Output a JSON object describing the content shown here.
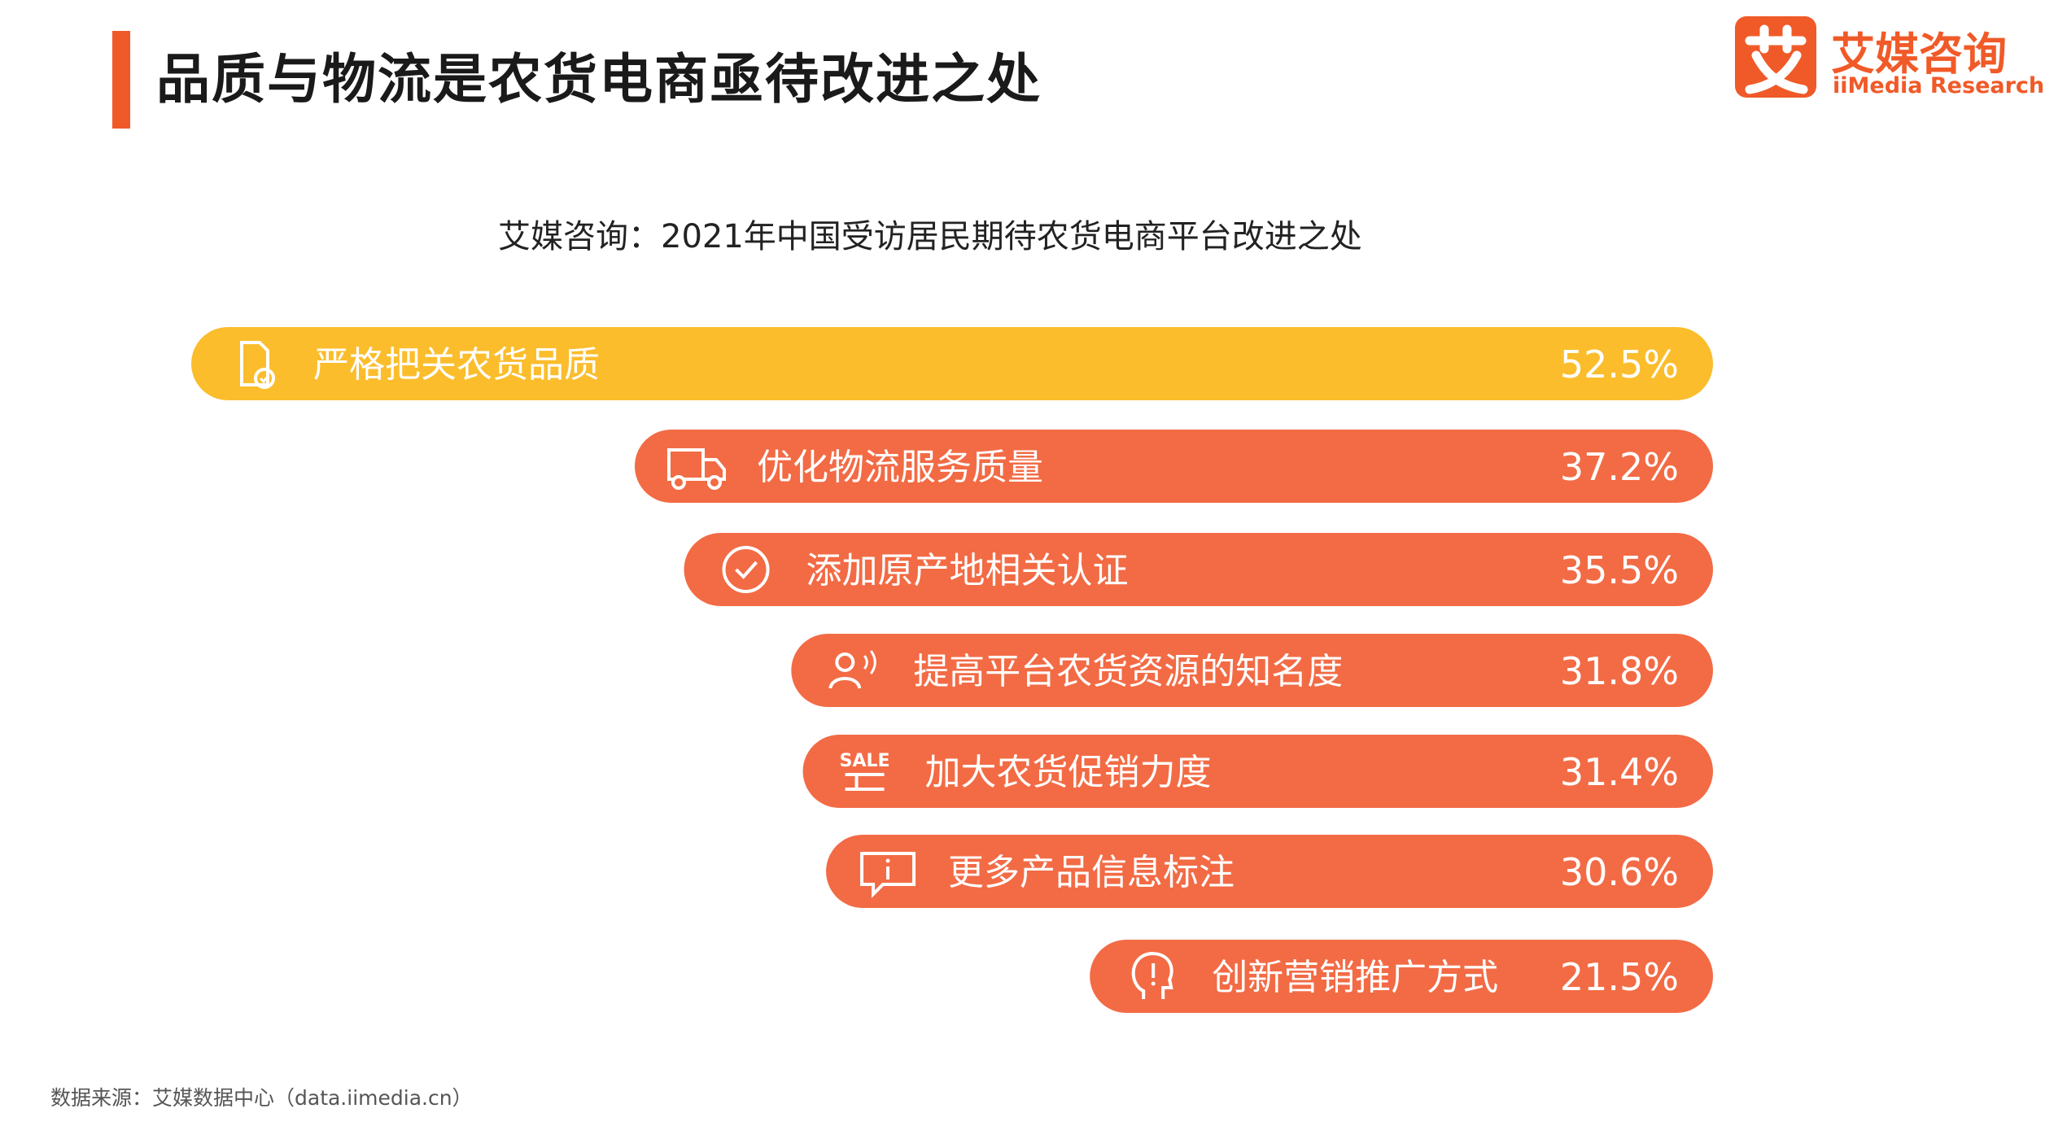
{
  "header": {
    "title": "品质与物流是农货电商亟待改进之处",
    "accent_color": "#f05a28"
  },
  "logo": {
    "mark": "艾",
    "name_cn": "艾媒咨询",
    "name_en": "iiMedia Research"
  },
  "source": "数据来源：艾媒数据中心（data.iimedia.cn）",
  "chart_data": {
    "type": "bar",
    "orientation": "horizontal",
    "title": "艾媒咨询：2021年中国受访居民期待农货电商平台改进之处",
    "categories": [
      "严格把关农货品质",
      "优化物流服务质量",
      "添加原产地相关认证",
      "提高平台农货资源的知名度",
      "加大农货促销力度",
      "更多产品信息标注",
      "创新营销推广方式"
    ],
    "values": [
      52.5,
      37.2,
      35.5,
      31.8,
      31.4,
      30.6,
      21.5
    ],
    "value_labels": [
      "52.5%",
      "37.2%",
      "35.5%",
      "31.8%",
      "31.4%",
      "30.6%",
      "21.5%"
    ],
    "icons": [
      "document-check-icon",
      "truck-icon",
      "check-circle-icon",
      "user-broadcast-icon",
      "sale-icon",
      "info-message-icon",
      "idea-head-icon"
    ],
    "colors": [
      "#fbbd2c",
      "#f26b45",
      "#f26b45",
      "#f26b45",
      "#f26b45",
      "#f26b45",
      "#f26b45"
    ],
    "alignment": "right",
    "grid": false,
    "legend": "none"
  }
}
